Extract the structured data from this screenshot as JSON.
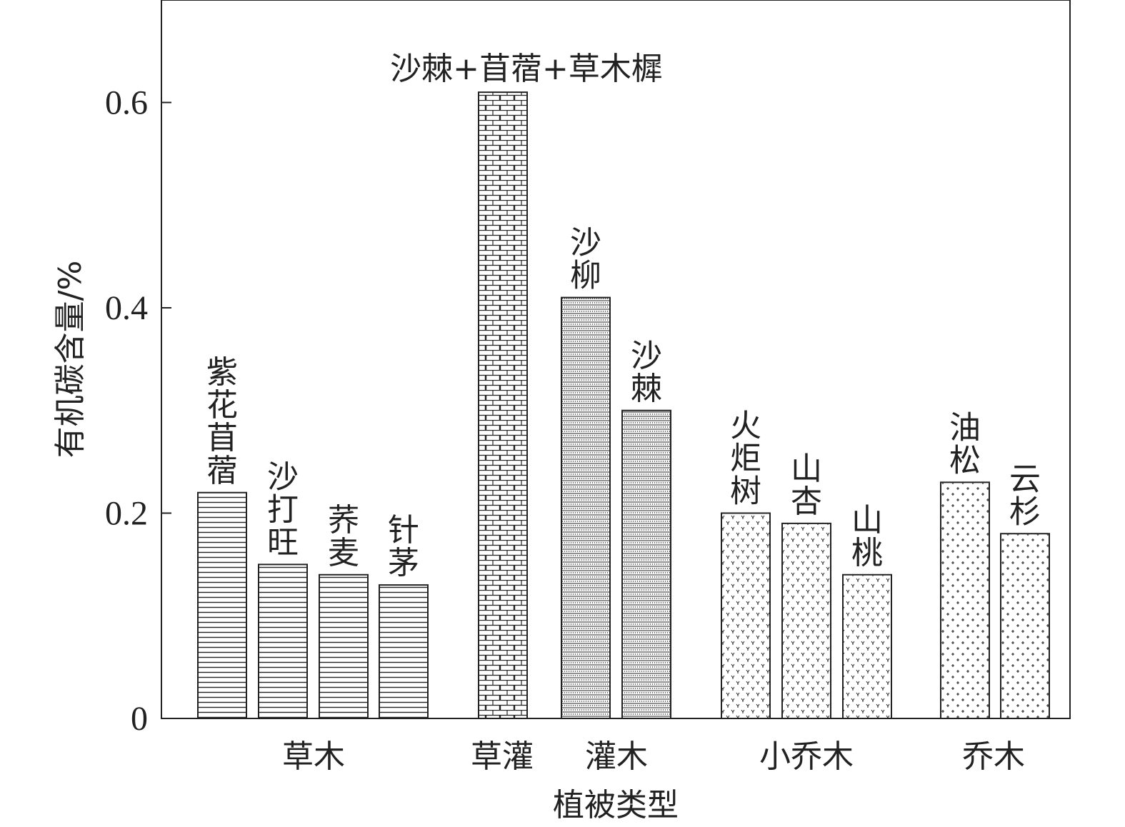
{
  "chart_data": {
    "type": "bar",
    "title": "",
    "xlabel": "植被类型",
    "ylabel": "有机碳含量/%",
    "ylim": [
      0,
      0.7
    ],
    "yticks": [
      "0",
      "0.2",
      "0.4",
      "0.6"
    ],
    "ytick_values": [
      0,
      0.2,
      0.4,
      0.6
    ],
    "groups": [
      {
        "name": "草木",
        "bars": [
          {
            "label": "紫花苜蓿",
            "value": 0.22,
            "pattern": "hlines"
          },
          {
            "label": "沙打旺",
            "value": 0.15,
            "pattern": "hlines"
          },
          {
            "label": "荞麦",
            "value": 0.14,
            "pattern": "hlines"
          },
          {
            "label": "针茅",
            "value": 0.13,
            "pattern": "hlines"
          }
        ]
      },
      {
        "name": "草灌",
        "bars": [
          {
            "label": "沙棘+苜蓿+草木樨",
            "value": 0.61,
            "pattern": "bricks"
          }
        ]
      },
      {
        "name": "灌木",
        "bars": [
          {
            "label": "沙柳",
            "value": 0.41,
            "pattern": "dots"
          },
          {
            "label": "沙棘",
            "value": 0.3,
            "pattern": "dots"
          }
        ]
      },
      {
        "name": "小乔木",
        "bars": [
          {
            "label": "火炬树",
            "value": 0.2,
            "pattern": "ys"
          },
          {
            "label": "山杏",
            "value": 0.19,
            "pattern": "ys"
          },
          {
            "label": "山桃",
            "value": 0.14,
            "pattern": "ys"
          }
        ]
      },
      {
        "name": "乔木",
        "bars": [
          {
            "label": "油松",
            "value": 0.23,
            "pattern": "plus"
          },
          {
            "label": "云杉",
            "value": 0.18,
            "pattern": "plus"
          }
        ]
      }
    ],
    "grid": false,
    "colors": {
      "stroke": "#222222",
      "fill": "#ffffff"
    }
  }
}
